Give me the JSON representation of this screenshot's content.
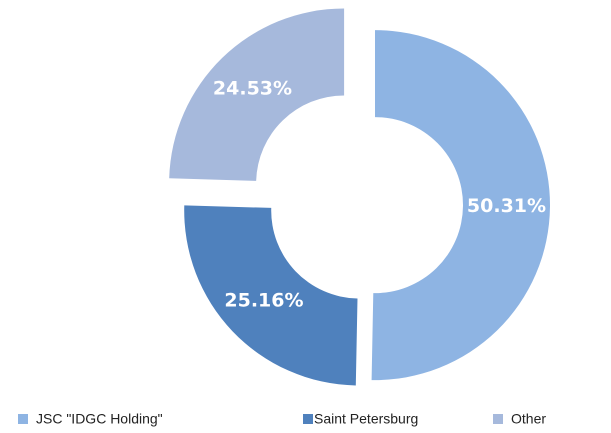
{
  "chart_data": {
    "type": "pie",
    "categories": [
      "JSC \"IDGC Holding\"",
      "Saint Petersburg",
      "Other"
    ],
    "values": [
      50.31,
      25.16,
      24.53
    ],
    "value_labels": [
      "50.31%",
      "25.16%",
      "24.53%"
    ],
    "colors": [
      "#8eb4e3",
      "#4f81bd",
      "#a6b9dc"
    ],
    "donut": true,
    "legend": "bottom"
  }
}
